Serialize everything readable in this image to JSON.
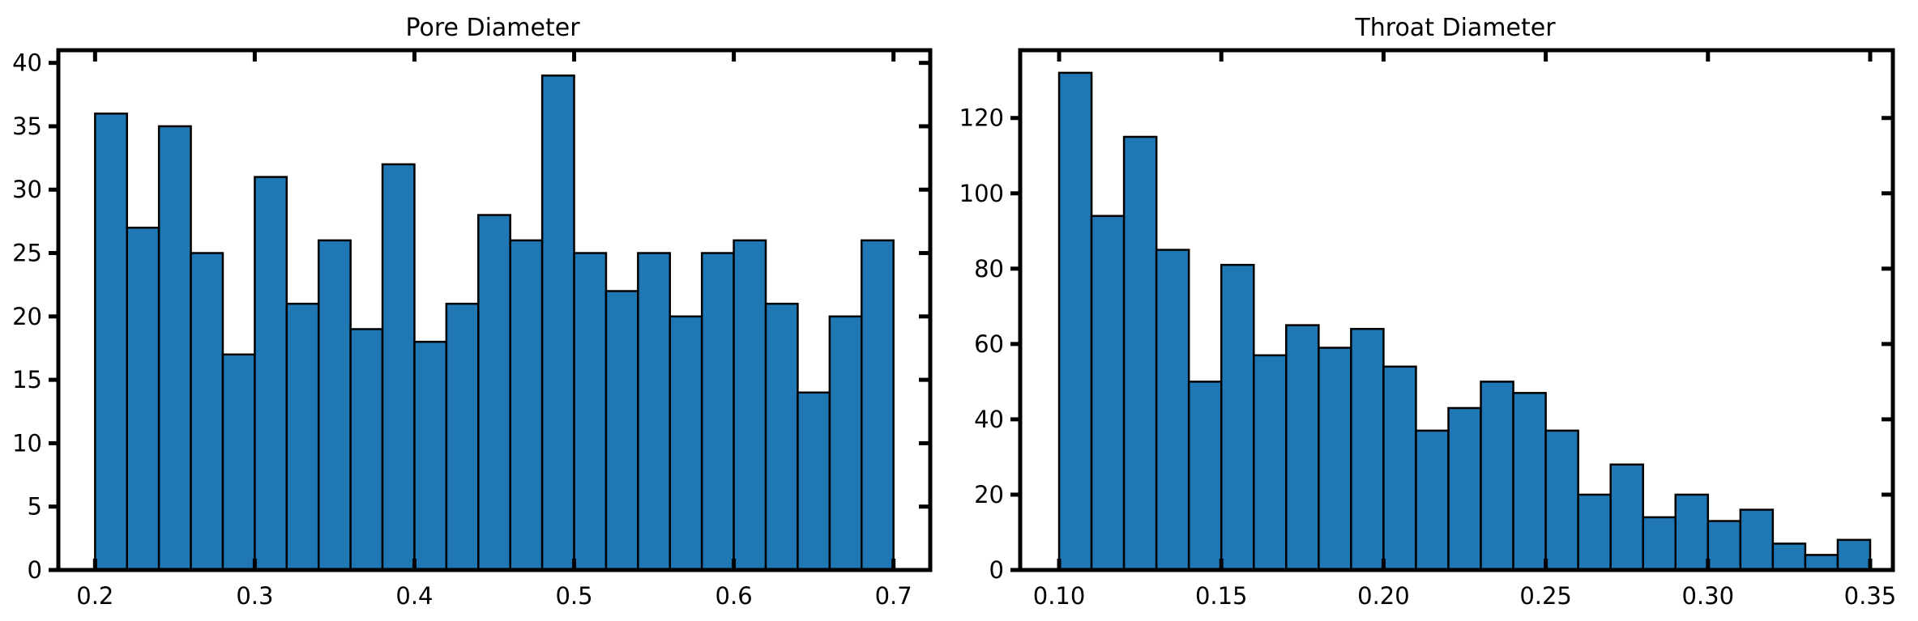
{
  "chart_data": [
    {
      "type": "bar",
      "title": "Pore Diameter",
      "xlabel": "",
      "ylabel": "",
      "bin_start": 0.2,
      "bin_width": 0.02,
      "values": [
        36,
        27,
        35,
        25,
        17,
        31,
        21,
        26,
        19,
        32,
        18,
        21,
        28,
        26,
        39,
        25,
        22,
        25,
        20,
        25,
        26,
        21,
        14,
        20,
        26
      ],
      "xlim": [
        0.177,
        0.723
      ],
      "ylim": [
        0,
        41
      ],
      "xticks": [
        0.2,
        0.3,
        0.4,
        0.5,
        0.6,
        0.7
      ],
      "xtick_labels": [
        "0.2",
        "0.3",
        "0.4",
        "0.5",
        "0.6",
        "0.7"
      ],
      "yticks": [
        0,
        5,
        10,
        15,
        20,
        25,
        30,
        35,
        40
      ],
      "ytick_labels": [
        "0",
        "5",
        "10",
        "15",
        "20",
        "25",
        "30",
        "35",
        "40"
      ],
      "bar_color": "#1f77b4",
      "edge_color": "#000000",
      "grid": false,
      "legend": "none"
    },
    {
      "type": "bar",
      "title": "Throat Diameter",
      "xlabel": "",
      "ylabel": "",
      "bin_start": 0.1,
      "bin_width": 0.01,
      "values": [
        132,
        94,
        115,
        85,
        50,
        81,
        57,
        65,
        59,
        64,
        54,
        37,
        43,
        50,
        47,
        37,
        20,
        28,
        14,
        20,
        13,
        16,
        7,
        4,
        8
      ],
      "xlim": [
        0.088,
        0.357
      ],
      "ylim": [
        0,
        138
      ],
      "xticks": [
        0.1,
        0.15,
        0.2,
        0.25,
        0.3,
        0.35
      ],
      "xtick_labels": [
        "0.10",
        "0.15",
        "0.20",
        "0.25",
        "0.30",
        "0.35"
      ],
      "yticks": [
        0,
        20,
        40,
        60,
        80,
        100,
        120
      ],
      "ytick_labels": [
        "0",
        "20",
        "40",
        "60",
        "80",
        "100",
        "120"
      ],
      "bar_color": "#1f77b4",
      "edge_color": "#000000",
      "grid": false,
      "legend": "none"
    }
  ]
}
